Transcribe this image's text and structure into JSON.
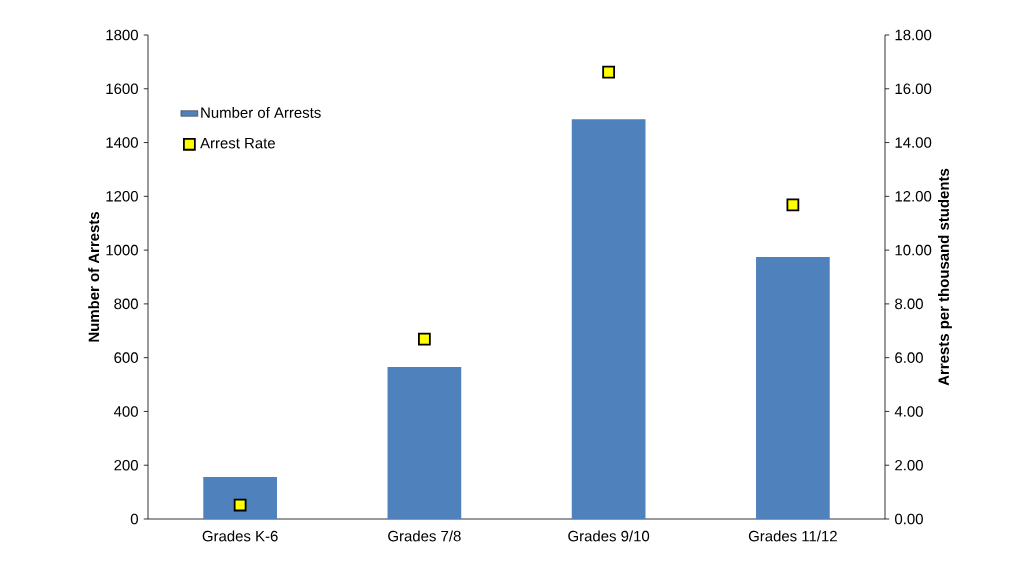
{
  "chart_data": {
    "type": "bar",
    "categories": [
      "Grades K-6",
      "Grades 7/8",
      "Grades 9/10",
      "Grades 11/12"
    ],
    "series": [
      {
        "name": "Number of Arrests",
        "color": "#4f81bd",
        "values": [
          156,
          565,
          1487,
          974
        ]
      },
      {
        "name": "Arrest Rate",
        "type": "scatter",
        "axis": "y2",
        "color": "#ffff00",
        "values": [
          0.52,
          6.69,
          16.62,
          11.68
        ]
      }
    ],
    "ylabel": "Number of Arrests",
    "y2label": "Arrests per thousand students",
    "ylim": [
      0,
      1800
    ],
    "yticks": [
      0,
      200,
      400,
      600,
      800,
      1000,
      1200,
      1400,
      1600,
      1800
    ],
    "y2lim": [
      0,
      18
    ],
    "y2ticks": [
      {
        "value": 0,
        "label": "0.00"
      },
      {
        "value": 2,
        "label": "2.00"
      },
      {
        "value": 4,
        "label": "4.00"
      },
      {
        "value": 6,
        "label": "6.00"
      },
      {
        "value": 8,
        "label": "8.00"
      },
      {
        "value": 10,
        "label": "10.00"
      },
      {
        "value": 12,
        "label": "12.00"
      },
      {
        "value": 14,
        "label": "14.00"
      },
      {
        "value": 16,
        "label": "16.00"
      },
      {
        "value": 18,
        "label": "18.00"
      }
    ],
    "legend": "top left",
    "marker": "square",
    "grid": false
  }
}
